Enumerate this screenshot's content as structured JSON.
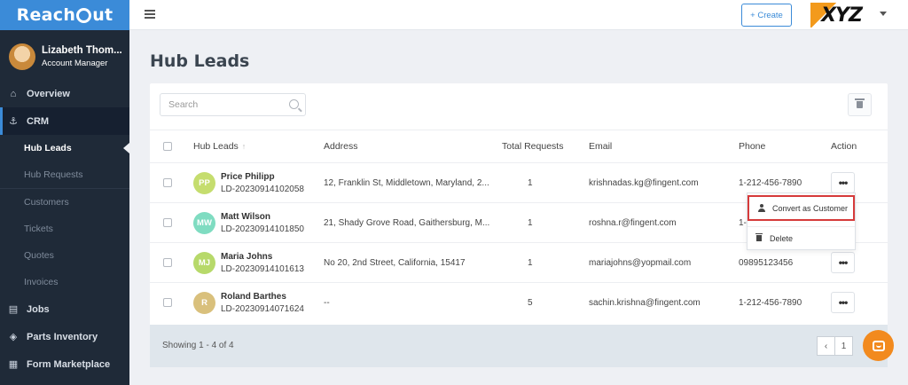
{
  "app": {
    "logo": "Reach",
    "logo_suffix": "ut"
  },
  "user": {
    "name": "Lizabeth Thom...",
    "role": "Account Manager"
  },
  "sidebar": {
    "items": [
      {
        "label": "Overview",
        "icon": "home-icon"
      },
      {
        "label": "CRM",
        "icon": "anchor-icon"
      },
      {
        "label": "Jobs",
        "icon": "briefcase-icon"
      },
      {
        "label": "Parts Inventory",
        "icon": "cube-icon"
      },
      {
        "label": "Form Marketplace",
        "icon": "form-icon"
      }
    ],
    "crm_sub": [
      "Hub Leads",
      "Hub Requests",
      "Customers",
      "Tickets",
      "Quotes",
      "Invoices"
    ]
  },
  "topbar": {
    "create_label": "+ Create",
    "brand": "XYZ"
  },
  "page": {
    "title": "Hub Leads"
  },
  "search": {
    "placeholder": "Search"
  },
  "table": {
    "headers": {
      "name": "Hub Leads",
      "address": "Address",
      "requests": "Total Requests",
      "email": "Email",
      "phone": "Phone",
      "action": "Action"
    },
    "rows": [
      {
        "initials": "PP",
        "color": "#c5dd6e",
        "name": "Price Philipp",
        "id": "LD-20230914102058",
        "address": "12, Franklin St, Middletown, Maryland, 2...",
        "requests": "1",
        "email": "krishnadas.kg@fingent.com",
        "phone": "1-212-456-7890"
      },
      {
        "initials": "MW",
        "color": "#7fdcc1",
        "name": "Matt Wilson",
        "id": "LD-20230914101850",
        "address": "21, Shady Grove Road, Gaithersburg, M...",
        "requests": "1",
        "email": "roshna.r@fingent.com",
        "phone": "1-"
      },
      {
        "initials": "MJ",
        "color": "#b7d96a",
        "name": "Maria Johns",
        "id": "LD-20230914101613",
        "address": "No 20, 2nd Street, California, 15417",
        "requests": "1",
        "email": "mariajohns@yopmail.com",
        "phone": "09895123456"
      },
      {
        "initials": "R",
        "color": "#d9c07c",
        "name": "Roland Barthes",
        "id": "LD-20230914071624",
        "address": "--",
        "requests": "5",
        "email": "sachin.krishna@fingent.com",
        "phone": "1-212-456-7890"
      }
    ]
  },
  "action_menu": {
    "convert": "Convert as Customer",
    "delete": "Delete"
  },
  "footer": {
    "showing": "Showing 1 - 4 of 4",
    "prev": "‹",
    "page": "1"
  }
}
